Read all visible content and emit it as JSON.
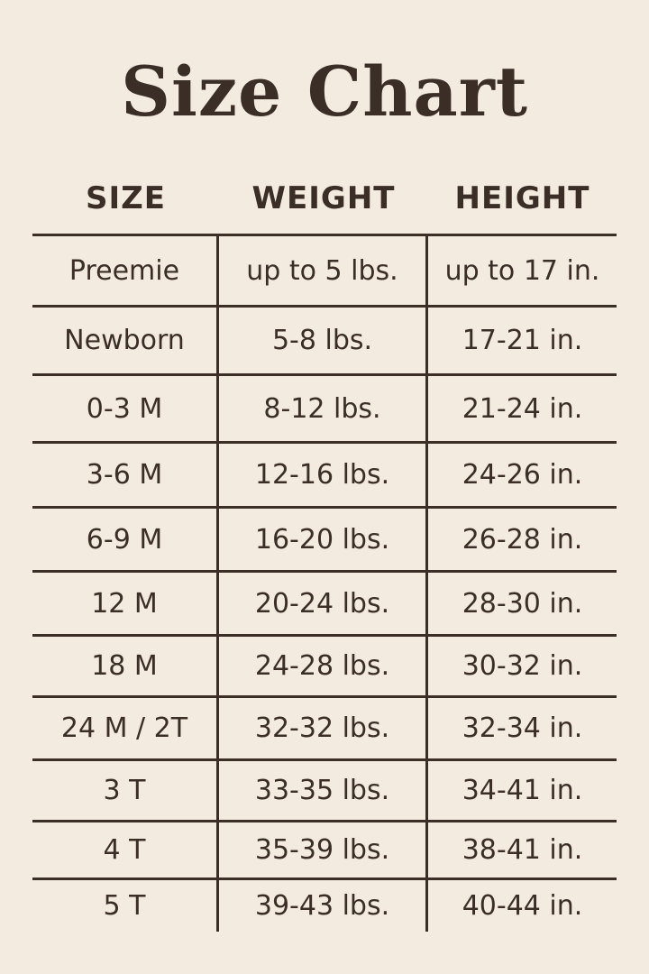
{
  "title": "Size Chart",
  "headers": [
    "SIZE",
    "WEIGHT",
    "HEIGHT"
  ],
  "rows": [
    [
      "Preemie",
      "up to 5 lbs.",
      "up to 17 in."
    ],
    [
      "Newborn",
      "5-8 lbs.",
      "17-21 in."
    ],
    [
      "0-3 M",
      "8-12 lbs.",
      "21-24 in."
    ],
    [
      "3-6 M",
      "12-16 lbs.",
      "24-26 in."
    ],
    [
      "6-9 M",
      "16-20 lbs.",
      "26-28 in."
    ],
    [
      "12 M",
      "20-24 lbs.",
      "28-30 in."
    ],
    [
      "18 M",
      "24-28 lbs.",
      "30-32 in."
    ],
    [
      "24 M / 2T",
      "32-32 lbs.",
      "32-34 in."
    ],
    [
      "3 T",
      "33-35 lbs.",
      "34-41 in."
    ],
    [
      "4 T",
      "35-39 lbs.",
      "38-41 in."
    ],
    [
      "5 T",
      "39-43 lbs.",
      "40-44 in."
    ]
  ],
  "colors": {
    "background": "#f3ebe0",
    "text": "#3a2e26"
  }
}
